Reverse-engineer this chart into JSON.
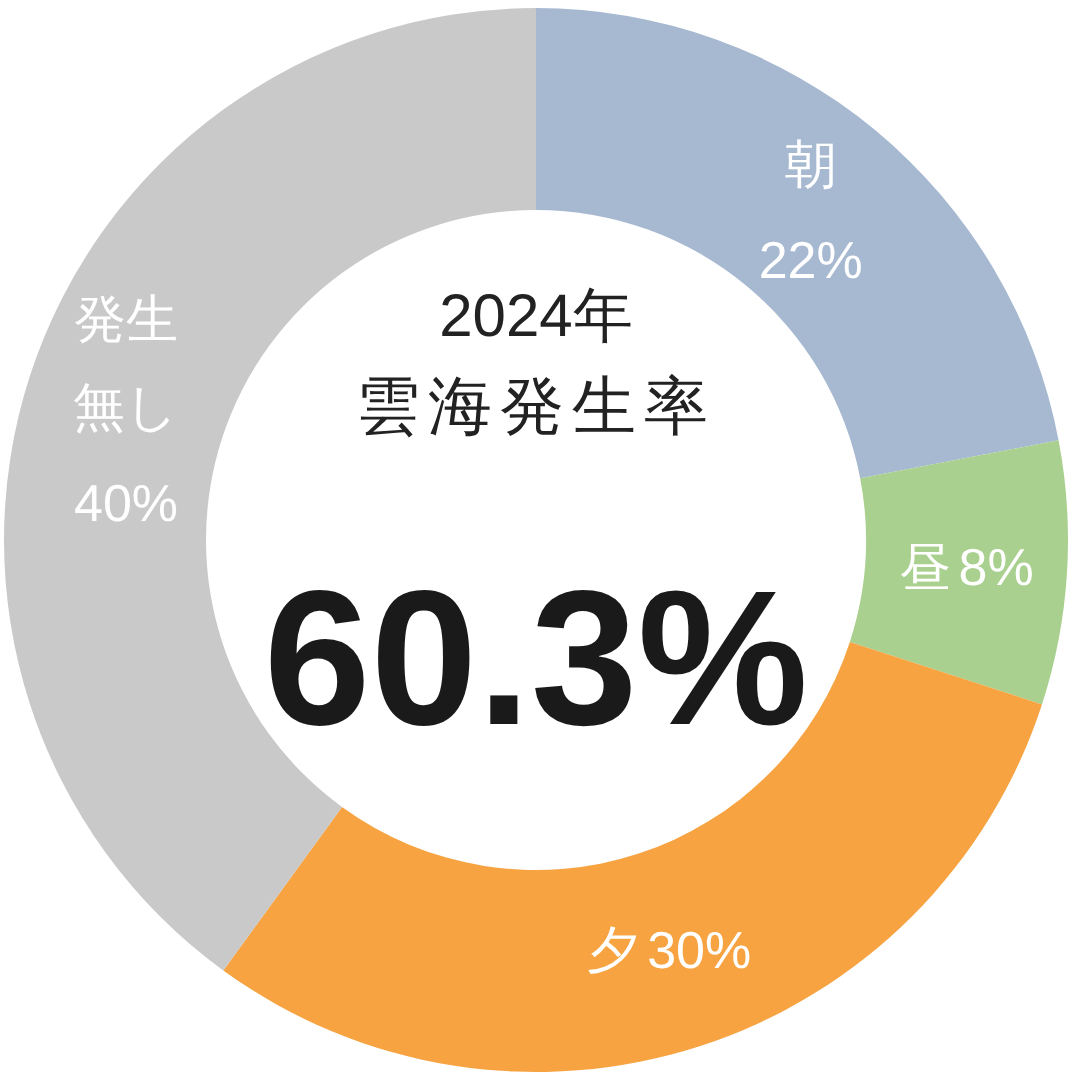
{
  "chart_data": {
    "type": "donut",
    "title": "2024年",
    "subtitle": "雲海発生率",
    "annotations": [
      "60.3%"
    ],
    "categories": [
      "朝",
      "昼",
      "夕",
      "発生無し"
    ],
    "values": [
      22,
      8,
      30,
      40
    ],
    "value_labels": [
      "22%",
      "8%",
      "30%",
      "40%"
    ],
    "colors": [
      "#a6b9d1",
      "#a9d08e",
      "#f7a341",
      "#c9c9c9"
    ]
  }
}
